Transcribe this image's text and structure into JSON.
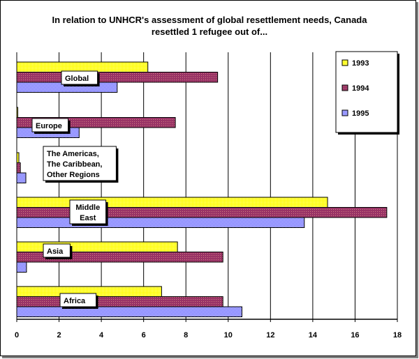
{
  "chart_data": {
    "type": "bar",
    "orientation": "horizontal",
    "title_lines": [
      "In relation to UNHCR's assessment of global resettlement needs, Canada",
      "resettled 1 refugee out of..."
    ],
    "categories": [
      [
        "Global"
      ],
      [
        "Europe"
      ],
      [
        "The Americas,",
        "The Caribbean,",
        "Other Regions"
      ],
      [
        "Middle",
        "East"
      ],
      [
        "Asia"
      ],
      [
        "Africa"
      ]
    ],
    "series": [
      {
        "name": "1993",
        "color": "#ffff00",
        "values": [
          6.2,
          0.05,
          0.1,
          14.7,
          7.6,
          6.85
        ]
      },
      {
        "name": "1994",
        "color": "#993366",
        "values": [
          9.5,
          7.5,
          0.17,
          17.5,
          9.75,
          9.75
        ]
      },
      {
        "name": "1995",
        "color": "#6666ff",
        "values": [
          4.75,
          2.95,
          0.43,
          13.6,
          0.46,
          10.65
        ]
      }
    ],
    "xlim": [
      0,
      18
    ],
    "xticks": [
      0,
      2,
      4,
      6,
      8,
      10,
      12,
      14,
      16,
      18
    ],
    "grid": true,
    "legend_position": "top-right"
  }
}
